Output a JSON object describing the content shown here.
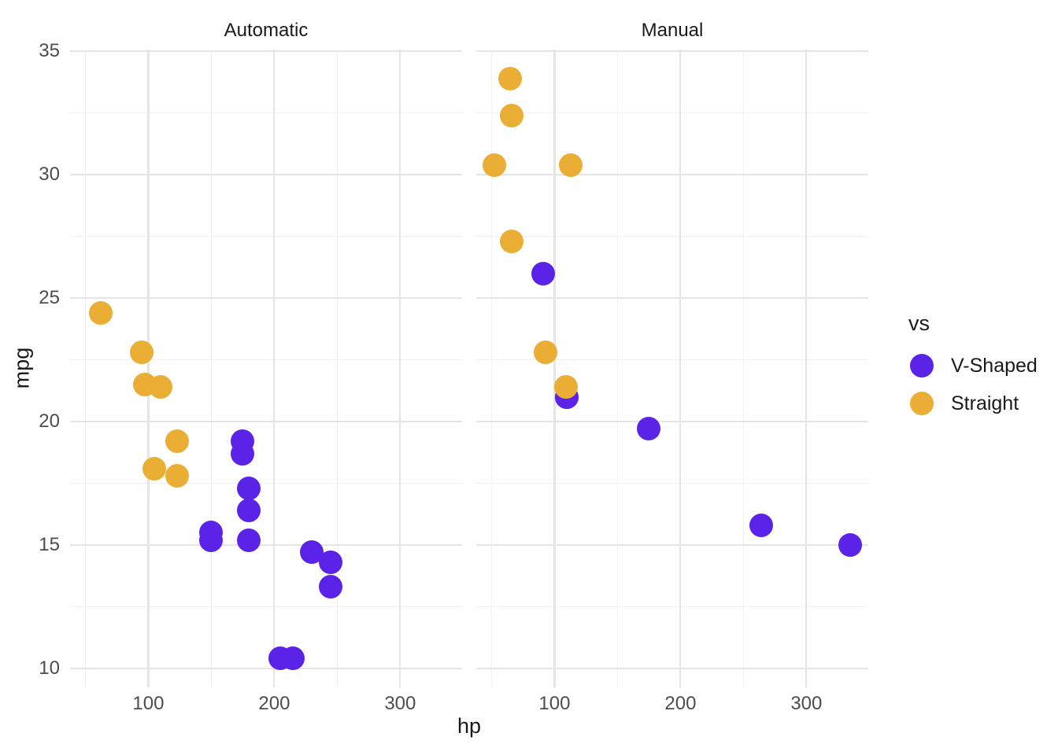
{
  "colors": {
    "v_shaped": "#5B23E8",
    "straight": "#EAAE35",
    "grid_major": "#E5E5E5",
    "grid_minor": "#F1F1F1",
    "tick_label": "#4D4D4D",
    "title_text": "#1A1A1A",
    "background": "#FFFFFF"
  },
  "chart_data": {
    "type": "scatter",
    "xlabel": "hp",
    "ylabel": "mpg",
    "x_axis": {
      "ticks": [
        100,
        200,
        300
      ],
      "minor_ticks": [
        50,
        150,
        250,
        350
      ],
      "range": [
        37.85,
        349.15
      ]
    },
    "y_axis": {
      "ticks": [
        10,
        15,
        20,
        25,
        30,
        35
      ],
      "minor_ticks": [
        12.5,
        17.5,
        22.5,
        27.5,
        32.5
      ],
      "range": [
        9.225,
        35.075
      ]
    },
    "legend": {
      "title": "vs",
      "position": "right",
      "items": [
        {
          "label": "V-Shaped",
          "color": "#5B23E8"
        },
        {
          "label": "Straight",
          "color": "#EAAE35"
        }
      ]
    },
    "facets": [
      {
        "label": "Automatic",
        "points": [
          {
            "hp": 110,
            "mpg": 21.4,
            "vs": "Straight"
          },
          {
            "hp": 175,
            "mpg": 18.7,
            "vs": "V-Shaped"
          },
          {
            "hp": 105,
            "mpg": 18.1,
            "vs": "Straight"
          },
          {
            "hp": 245,
            "mpg": 14.3,
            "vs": "V-Shaped"
          },
          {
            "hp": 62,
            "mpg": 24.4,
            "vs": "Straight"
          },
          {
            "hp": 95,
            "mpg": 22.8,
            "vs": "Straight"
          },
          {
            "hp": 123,
            "mpg": 19.2,
            "vs": "Straight"
          },
          {
            "hp": 123,
            "mpg": 17.8,
            "vs": "Straight"
          },
          {
            "hp": 180,
            "mpg": 16.4,
            "vs": "V-Shaped"
          },
          {
            "hp": 180,
            "mpg": 17.3,
            "vs": "V-Shaped"
          },
          {
            "hp": 180,
            "mpg": 15.2,
            "vs": "V-Shaped"
          },
          {
            "hp": 205,
            "mpg": 10.4,
            "vs": "V-Shaped"
          },
          {
            "hp": 215,
            "mpg": 10.4,
            "vs": "V-Shaped"
          },
          {
            "hp": 230,
            "mpg": 14.7,
            "vs": "V-Shaped"
          },
          {
            "hp": 97,
            "mpg": 21.5,
            "vs": "Straight"
          },
          {
            "hp": 150,
            "mpg": 15.5,
            "vs": "V-Shaped"
          },
          {
            "hp": 150,
            "mpg": 15.2,
            "vs": "V-Shaped"
          },
          {
            "hp": 245,
            "mpg": 13.3,
            "vs": "V-Shaped"
          },
          {
            "hp": 175,
            "mpg": 19.2,
            "vs": "V-Shaped"
          }
        ]
      },
      {
        "label": "Manual",
        "points": [
          {
            "hp": 110,
            "mpg": 21.0,
            "vs": "V-Shaped"
          },
          {
            "hp": 110,
            "mpg": 21.0,
            "vs": "V-Shaped"
          },
          {
            "hp": 93,
            "mpg": 22.8,
            "vs": "Straight"
          },
          {
            "hp": 66,
            "mpg": 32.4,
            "vs": "Straight"
          },
          {
            "hp": 52,
            "mpg": 30.4,
            "vs": "Straight"
          },
          {
            "hp": 65,
            "mpg": 33.9,
            "vs": "Straight"
          },
          {
            "hp": 66,
            "mpg": 27.3,
            "vs": "Straight"
          },
          {
            "hp": 91,
            "mpg": 26.0,
            "vs": "V-Shaped"
          },
          {
            "hp": 113,
            "mpg": 30.4,
            "vs": "Straight"
          },
          {
            "hp": 264,
            "mpg": 15.8,
            "vs": "V-Shaped"
          },
          {
            "hp": 175,
            "mpg": 19.7,
            "vs": "V-Shaped"
          },
          {
            "hp": 335,
            "mpg": 15.0,
            "vs": "V-Shaped"
          },
          {
            "hp": 109,
            "mpg": 21.4,
            "vs": "Straight"
          }
        ]
      }
    ]
  }
}
